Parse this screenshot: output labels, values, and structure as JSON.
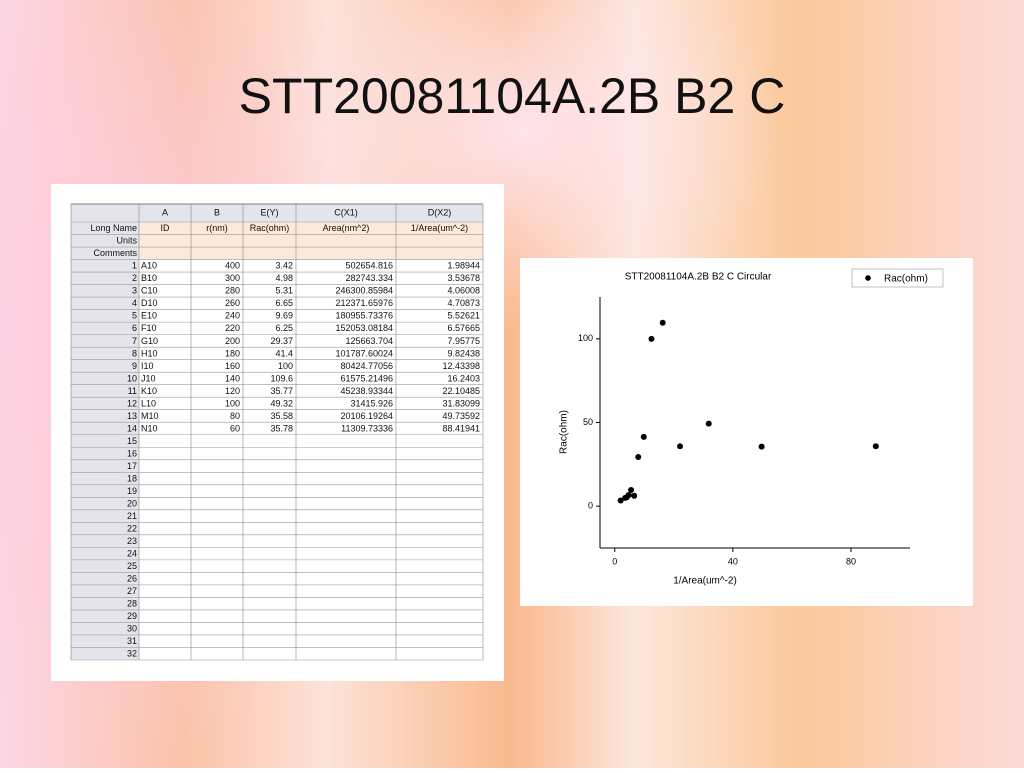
{
  "title": "STT20081104A.2B B2 C",
  "table": {
    "columns": [
      "A",
      "B",
      "E(Y)",
      "C(X1)",
      "D(X2)"
    ],
    "rows": [
      {
        "label": "Long Name",
        "cells": [
          "ID",
          "r(nm)",
          "Rac(ohm)",
          "Area(nm^2)",
          "1/Area(um^-2)"
        ]
      },
      {
        "label": "Units"
      },
      {
        "label": "Comments"
      },
      {
        "label": 1,
        "cells": [
          "A10",
          "400",
          "3.42",
          "502654.816",
          "1.98944"
        ]
      },
      {
        "label": 2,
        "cells": [
          "B10",
          "300",
          "4.98",
          "282743.334",
          "3.53678"
        ]
      },
      {
        "label": 3,
        "cells": [
          "C10",
          "280",
          "5.31",
          "246300.85984",
          "4.06008"
        ]
      },
      {
        "label": 4,
        "cells": [
          "D10",
          "260",
          "6.65",
          "212371.65976",
          "4.70873"
        ]
      },
      {
        "label": 5,
        "cells": [
          "E10",
          "240",
          "9.69",
          "180955.73376",
          "5.52621"
        ]
      },
      {
        "label": 6,
        "cells": [
          "F10",
          "220",
          "6.25",
          "152053.08184",
          "6.57665"
        ]
      },
      {
        "label": 7,
        "cells": [
          "G10",
          "200",
          "29.37",
          "125663.704",
          "7.95775"
        ]
      },
      {
        "label": 8,
        "cells": [
          "H10",
          "180",
          "41.4",
          "101787.60024",
          "9.82438"
        ]
      },
      {
        "label": 9,
        "cells": [
          "I10",
          "160",
          "100",
          "80424.77056",
          "12.43398"
        ]
      },
      {
        "label": 10,
        "cells": [
          "J10",
          "140",
          "109.6",
          "61575.21496",
          "16.2403"
        ]
      },
      {
        "label": 11,
        "cells": [
          "K10",
          "120",
          "35.77",
          "45238.93344",
          "22.10485"
        ]
      },
      {
        "label": 12,
        "cells": [
          "L10",
          "100",
          "49.32",
          "31415.926",
          "31.83099"
        ]
      },
      {
        "label": 13,
        "cells": [
          "M10",
          "80",
          "35.58",
          "20106.19264",
          "49.73592"
        ]
      },
      {
        "label": 14,
        "cells": [
          "N10",
          "60",
          "35.78",
          "11309.73336",
          "88.41941"
        ]
      },
      {
        "label": 15
      },
      {
        "label": 16
      },
      {
        "label": 17
      },
      {
        "label": 18
      },
      {
        "label": 19
      },
      {
        "label": 20
      },
      {
        "label": 21
      },
      {
        "label": 22
      },
      {
        "label": 23
      },
      {
        "label": 24
      },
      {
        "label": 25
      },
      {
        "label": 26
      },
      {
        "label": 27
      },
      {
        "label": 28
      },
      {
        "label": 29
      },
      {
        "label": 30
      },
      {
        "label": 31
      },
      {
        "label": 32
      }
    ]
  },
  "chart_data": {
    "type": "scatter",
    "title": "STT20081104A.2B B2 C Circular",
    "x_label": "1/Area(um^-2)",
    "y_label": "Rac(ohm)",
    "x": [
      1.98944,
      3.53678,
      4.06008,
      4.70873,
      5.52621,
      6.57665,
      7.95775,
      9.82438,
      12.43398,
      16.2403,
      22.10485,
      31.83099,
      49.73592,
      88.41941
    ],
    "series": [
      {
        "name": "Rac(ohm)",
        "color": "#000000",
        "values": [
          3.42,
          4.98,
          5.31,
          6.65,
          9.69,
          6.25,
          29.37,
          41.4,
          100,
          109.6,
          35.77,
          49.32,
          35.58,
          35.78
        ]
      }
    ],
    "xlim": [
      -5,
      100
    ],
    "ylim": [
      -25,
      125
    ],
    "xticks": [
      0,
      40,
      80
    ],
    "yticks": [
      0,
      50,
      100
    ],
    "legend": "top-right"
  }
}
